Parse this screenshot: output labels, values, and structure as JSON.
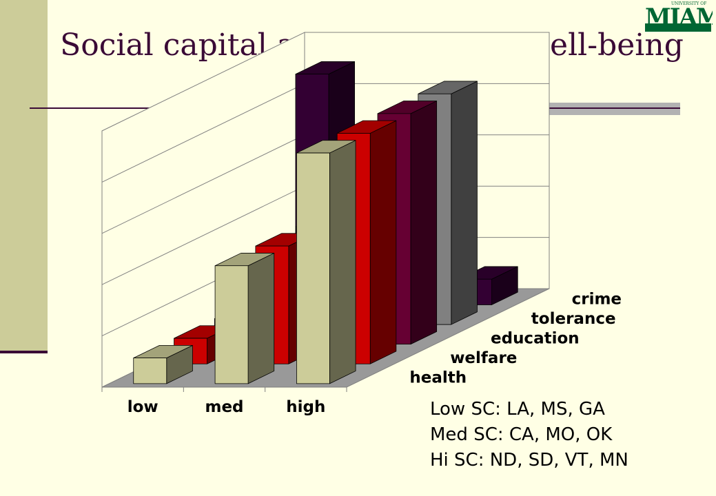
{
  "slide": {
    "title": "Social capital and community well-being",
    "logo_text": "MIAMI",
    "logo_small": "UNIVERSITY OF",
    "notes": [
      "Low SC: LA, MS, GA",
      "Med SC: CA, MO, OK",
      "Hi SC: ND, SD, VT, MN"
    ]
  },
  "chart_data": {
    "type": "bar",
    "categories": [
      "low",
      "med",
      "high"
    ],
    "series": [
      {
        "name": "health",
        "values": [
          0.5,
          2.3,
          4.5
        ],
        "color": "#cccc99"
      },
      {
        "name": "welfare",
        "values": [
          0.5,
          2.3,
          4.5
        ],
        "color": "#cc0000"
      },
      {
        "name": "education",
        "values": [
          0.5,
          2.3,
          4.5
        ],
        "color": "#660033"
      },
      {
        "name": "tolerance",
        "values": [
          0.0,
          2.3,
          4.5
        ],
        "color": "#808080"
      },
      {
        "name": "crime",
        "values": [
          4.5,
          2.3,
          0.5
        ],
        "color": "#330033"
      }
    ],
    "ylim": [
      0,
      5
    ],
    "grid": true,
    "title": "",
    "xlabel": "",
    "ylabel": ""
  }
}
